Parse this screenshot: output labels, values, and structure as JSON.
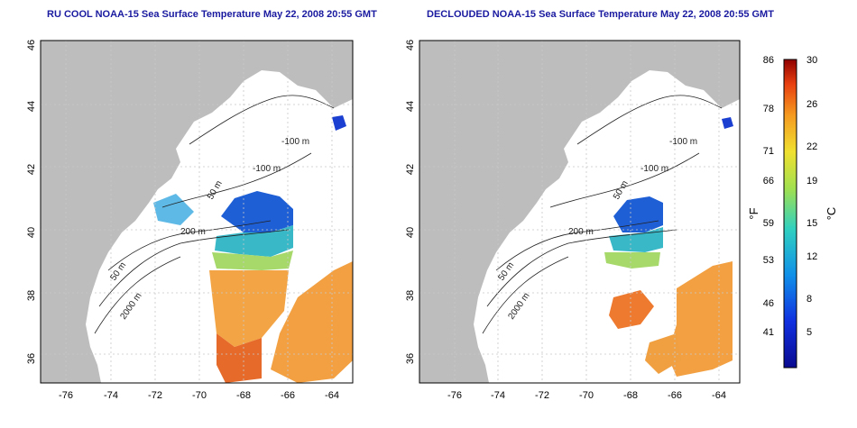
{
  "left_panel": {
    "title": "RU COOL NOAA-15 Sea Surface Temperature May 22, 2008 20:55 GMT",
    "y_ticks": [
      "36",
      "38",
      "40",
      "42",
      "44",
      "46"
    ],
    "x_ticks": [
      "-76",
      "-74",
      "-72",
      "-70",
      "-68",
      "-66",
      "-64"
    ],
    "contours": [
      "-100 m",
      "-100 m",
      "50 m",
      "200 m",
      "50 m",
      "2000 m"
    ]
  },
  "right_panel": {
    "title": "DECLOUDED NOAA-15 Sea Surface Temperature May 22, 2008 20:55 GMT",
    "y_ticks": [
      "36",
      "38",
      "40",
      "42",
      "44",
      "46"
    ],
    "x_ticks": [
      "-76",
      "-74",
      "-72",
      "-70",
      "-68",
      "-66",
      "-64"
    ],
    "contours": [
      "-100 m",
      "-100 m",
      "50 m",
      "200 m",
      "50 m",
      "2000 m"
    ]
  },
  "colorbar": {
    "fahrenheit_label": "°F",
    "celsius_label": "°C",
    "fahrenheit_ticks": [
      "86",
      "78",
      "71",
      "66",
      "59",
      "53",
      "46",
      "41"
    ],
    "celsius_ticks": [
      "30",
      "26",
      "22",
      "19",
      "15",
      "12",
      "8",
      "5"
    ]
  },
  "colors": {
    "land": "#bdbdbd",
    "title": "#1a1aa0",
    "grid": "#c8c8c8"
  }
}
